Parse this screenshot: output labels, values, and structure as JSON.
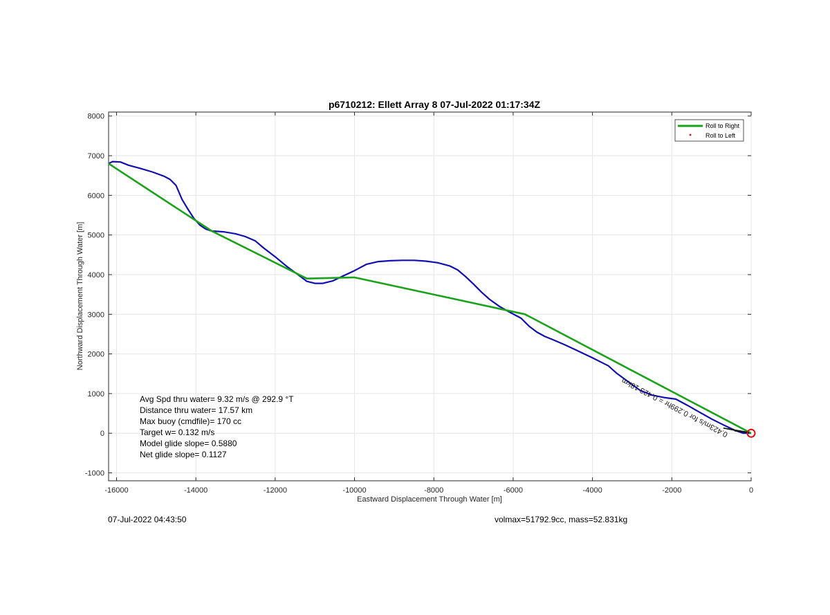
{
  "chart_data": {
    "type": "line",
    "title": "p6710212: Ellett Array 8 07-Jul-2022 01:17:34Z",
    "xlabel": "Eastward Displacement Through Water [m]",
    "ylabel": "Northward Displacement Through Water [m]",
    "xlim": [
      -16200,
      0
    ],
    "ylim": [
      -1200,
      8100
    ],
    "xticks": [
      -16000,
      -14000,
      -12000,
      -10000,
      -8000,
      -6000,
      -4000,
      -2000,
      0
    ],
    "yticks": [
      -1000,
      0,
      1000,
      2000,
      3000,
      4000,
      5000,
      6000,
      7000,
      8000
    ],
    "grid": true,
    "legend": {
      "placement": "top-right",
      "entries": [
        {
          "label": "Roll to Right",
          "color": "#1aa31a",
          "marker": "line"
        },
        {
          "label": "Roll to Left",
          "color": "#e01010",
          "marker": "dot"
        }
      ]
    },
    "series": [
      {
        "color": "#1010b0",
        "x": [
          -16200,
          -16100,
          -15900,
          -15700,
          -15400,
          -15100,
          -14800,
          -14650,
          -14500,
          -14350,
          -14200,
          -14050,
          -13900,
          -13750,
          -13600,
          -13300,
          -13000,
          -12750,
          -12500,
          -12300,
          -12000,
          -11700,
          -11400,
          -11200,
          -11000,
          -10800,
          -10550,
          -10300,
          -10000,
          -9700,
          -9400,
          -9100,
          -8800,
          -8500,
          -8200,
          -7900,
          -7600,
          -7400,
          -7200,
          -7000,
          -6800,
          -6600,
          -6350,
          -6100,
          -5800,
          -5600,
          -5400,
          -5200,
          -5000,
          -4700,
          -4400,
          -4000,
          -3600,
          -3400,
          -3100,
          -2800,
          -2500,
          -2200,
          -1900,
          -1600,
          -1300,
          -1000,
          -700,
          -400,
          -200,
          0
        ],
        "y": [
          6800,
          6850,
          6840,
          6760,
          6680,
          6590,
          6480,
          6400,
          6250,
          5900,
          5650,
          5420,
          5250,
          5150,
          5100,
          5080,
          5030,
          4960,
          4850,
          4680,
          4450,
          4200,
          3980,
          3830,
          3780,
          3780,
          3840,
          3960,
          4100,
          4260,
          4330,
          4350,
          4360,
          4360,
          4340,
          4300,
          4220,
          4120,
          3950,
          3760,
          3560,
          3380,
          3200,
          3060,
          2900,
          2700,
          2550,
          2440,
          2360,
          2230,
          2090,
          1900,
          1700,
          1520,
          1300,
          1080,
          960,
          900,
          860,
          700,
          530,
          360,
          210,
          70,
          0,
          0
        ]
      },
      {
        "color": "#1aa31a",
        "x": [
          -16200,
          -13600,
          -11200,
          -10000,
          -5700,
          0
        ],
        "y": [
          6800,
          5100,
          3900,
          3930,
          3000,
          0
        ]
      }
    ],
    "annotations": [
      "Avg Spd thru water=  9.32 m/s @ 292.9 °T",
      "Distance thru water= 17.57 km",
      "Max buoy (cmdfile)= 170 cc",
      "Target w= 0.132 m/s",
      "Model glide slope= 0.5880",
      "Net glide slope= 0.1127"
    ],
    "vector_label": "0.423m/s for 0.299hr = 0.423 18km"
  },
  "footer": {
    "timestamp": "07-Jul-2022 04:43:50",
    "mass_info": "volmax=51792.9cc, mass=52.831kg"
  }
}
